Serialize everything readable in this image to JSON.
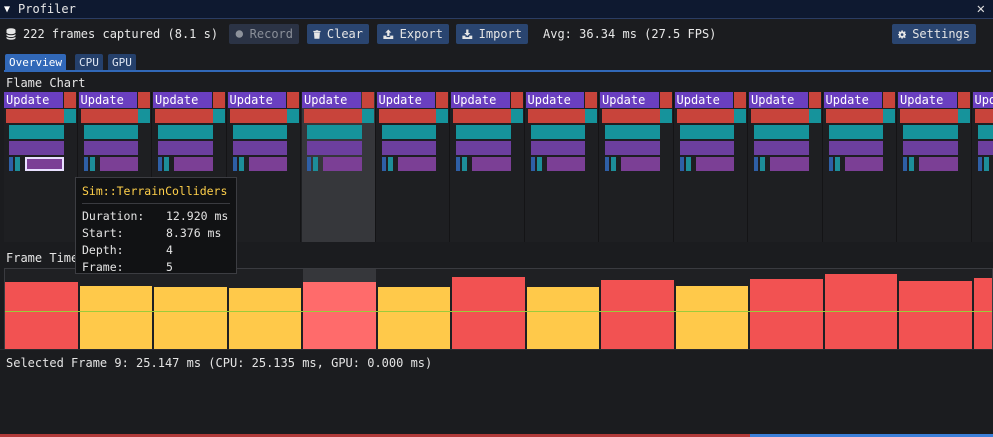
{
  "window": {
    "title": "Profiler",
    "collapse_glyph": "▼",
    "close_glyph": "✕"
  },
  "toolbar": {
    "frames_captured": "222 frames captured (8.1 s)",
    "record_label": "Record",
    "clear_label": "Clear",
    "export_label": "Export",
    "import_label": "Import",
    "avg_text": "Avg: 36.34 ms (27.5 FPS)",
    "settings_label": "Settings"
  },
  "tabs": [
    {
      "label": "Overview",
      "active": true
    },
    {
      "label": "CPU",
      "active": false
    },
    {
      "label": "GPU",
      "active": false
    }
  ],
  "flame_chart": {
    "label": "Flame Chart",
    "root_label": "Update",
    "selected_frame_index": 4,
    "frames": [
      "Update",
      "Update",
      "Update",
      "Update",
      "Update",
      "Update",
      "Update",
      "Update",
      "Update",
      "Update",
      "Update",
      "Update",
      "Update",
      "Update"
    ],
    "colors": {
      "update": "#6a3fc0",
      "red": "#c8443b",
      "teal": "#16939b",
      "purple": "#6c3f9e",
      "child_purple": "#7b3f95",
      "child_teal": "#1d8e99",
      "child_blue": "#2e5fa6",
      "highlight": "#e8e0ff"
    }
  },
  "tooltip": {
    "title": "Sim::TerrainColliders",
    "duration_label": "Duration:",
    "duration_value": "12.920 ms",
    "start_label": "Start:",
    "start_value": "8.376 ms",
    "depth_label": "Depth:",
    "depth_value": "4",
    "frame_label": "Frame:",
    "frame_value": "5"
  },
  "frame_time": {
    "label": "Frame Time",
    "bars_ms": [
      30.1,
      28.2,
      28.0,
      27.6,
      30.3,
      28.0,
      32.4,
      27.8,
      31.0,
      28.3,
      31.5,
      33.7,
      30.7,
      31.9
    ],
    "bar_colors": [
      "red",
      "yellow",
      "yellow",
      "yellow",
      "pink",
      "yellow",
      "red",
      "yellow",
      "red",
      "yellow",
      "red",
      "red",
      "red",
      "red"
    ],
    "colors": {
      "red": "#f25252",
      "yellow": "#ffc94a",
      "pink": "#ff6b6b",
      "target_line": "#9ccb3a"
    },
    "target_level_fraction": 0.46,
    "selected_index": 4
  },
  "status": {
    "selected_frame_text": "Selected Frame 9: 25.147 ms (CPU: 25.135 ms, GPU: 0.000 ms)"
  }
}
